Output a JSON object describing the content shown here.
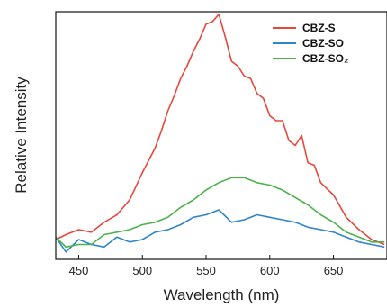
{
  "chart_data": {
    "type": "line",
    "xlabel": "Wavelength (nm)",
    "ylabel": "Relative Intensity",
    "xlim": [
      432,
      692
    ],
    "ylim": [
      0,
      1.0
    ],
    "x_ticks": [
      450,
      500,
      550,
      600,
      650
    ],
    "y_ticks_shown": false,
    "grid": false,
    "legend_position": "top-right",
    "series": [
      {
        "name": "CBZ-S",
        "color": "#e8473b",
        "x": [
          432,
          440,
          450,
          460,
          470,
          480,
          490,
          500,
          505,
          510,
          515,
          520,
          525,
          530,
          535,
          540,
          545,
          550,
          555,
          560,
          565,
          570,
          575,
          580,
          585,
          590,
          595,
          600,
          605,
          610,
          615,
          620,
          625,
          630,
          635,
          640,
          650,
          660,
          670,
          680,
          690
        ],
        "values": [
          0.08,
          0.1,
          0.12,
          0.11,
          0.15,
          0.18,
          0.24,
          0.35,
          0.4,
          0.45,
          0.52,
          0.6,
          0.66,
          0.73,
          0.78,
          0.84,
          0.89,
          0.95,
          0.96,
          0.99,
          0.9,
          0.8,
          0.78,
          0.74,
          0.73,
          0.67,
          0.65,
          0.58,
          0.56,
          0.56,
          0.48,
          0.46,
          0.5,
          0.39,
          0.38,
          0.31,
          0.26,
          0.17,
          0.12,
          0.08,
          0.06
        ]
      },
      {
        "name": "CBZ-SO",
        "color": "#2e86c8",
        "x": [
          432,
          440,
          450,
          460,
          470,
          480,
          490,
          500,
          510,
          520,
          530,
          540,
          550,
          560,
          570,
          580,
          590,
          600,
          610,
          620,
          630,
          640,
          650,
          660,
          670,
          680,
          690
        ],
        "values": [
          0.09,
          0.03,
          0.08,
          0.06,
          0.05,
          0.09,
          0.07,
          0.08,
          0.11,
          0.12,
          0.14,
          0.17,
          0.18,
          0.2,
          0.15,
          0.16,
          0.18,
          0.17,
          0.16,
          0.15,
          0.13,
          0.12,
          0.11,
          0.09,
          0.07,
          0.06,
          0.05
        ]
      },
      {
        "name": "CBZ-SO₂",
        "color": "#4cb34c",
        "x": [
          432,
          440,
          450,
          460,
          470,
          480,
          490,
          500,
          510,
          520,
          530,
          540,
          550,
          560,
          570,
          580,
          590,
          600,
          610,
          620,
          630,
          640,
          650,
          660,
          670,
          680,
          690
        ],
        "values": [
          0.09,
          0.05,
          0.06,
          0.06,
          0.1,
          0.11,
          0.12,
          0.14,
          0.15,
          0.17,
          0.21,
          0.24,
          0.28,
          0.31,
          0.33,
          0.33,
          0.31,
          0.3,
          0.28,
          0.25,
          0.22,
          0.18,
          0.15,
          0.11,
          0.09,
          0.07,
          0.07
        ]
      }
    ]
  }
}
